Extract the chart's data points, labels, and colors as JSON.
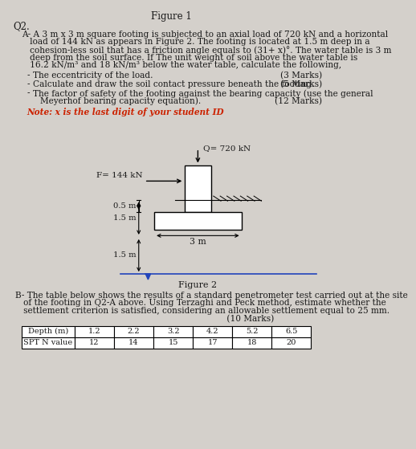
{
  "fig_title": "Figure 1",
  "q2_label": "Q2.",
  "para_a_lines": [
    "A- A 3 m x 3 m square footing is subjected to an axial load of 720 kN and a horizontal",
    "   load of 144 kN as appears in Figure 2. The footing is located at 1.5 m deep in a",
    "   cohesion-less soil that has a friction angle equals to (31+ x)°. The water table is 3 m",
    "   deep from the soil surface. If The unit weight of soil above the water table is",
    "   16.2 kN/m³ and 18 kN/m³ below the water table, calculate the following,"
  ],
  "bullet1": "The eccentricity of the load.",
  "bullet1_marks": "(3 Marks)",
  "bullet2": "Calculate and draw the soil contact pressure beneath the footing.",
  "bullet2_marks": "(5 Marks)",
  "bullet3a": "The factor of safety of the footing against the bearing capacity (use the general",
  "bullet3b": "Meyerhof bearing capacity equation).",
  "bullet3_marks": "(12 Marks)",
  "note_text": "Note: x is the last digit of your student ID",
  "Q_label": "Q= 720 kN",
  "F_label": "F= 144 kN",
  "dim_05": "0.5 m",
  "dim_15a": "1.5 m",
  "dim_15b": "1.5 m",
  "dim_3m": "3 m",
  "fig2_label": "Figure 2",
  "para_b_lines": [
    "B- The table below shows the results of a standard penetrometer test carried out at the site",
    "   of the footing in Q2-A above. Using Terzaghi and Peck method, estimate whether the",
    "   settlement criterion is satisfied, considering an allowable settlement equal to 25 mm.",
    "                                                                              (10 Marks)"
  ],
  "table_headers": [
    "Depth (m)",
    "1.2",
    "2.2",
    "3.2",
    "4.2",
    "5.2",
    "6.5"
  ],
  "table_row": [
    "SPT N value",
    "12",
    "14",
    "15",
    "17",
    "18",
    "20"
  ],
  "bg_color": "#d4d0cb",
  "text_color": "#1a1a1a",
  "note_color": "#cc2200",
  "water_line_color": "#2244bb"
}
